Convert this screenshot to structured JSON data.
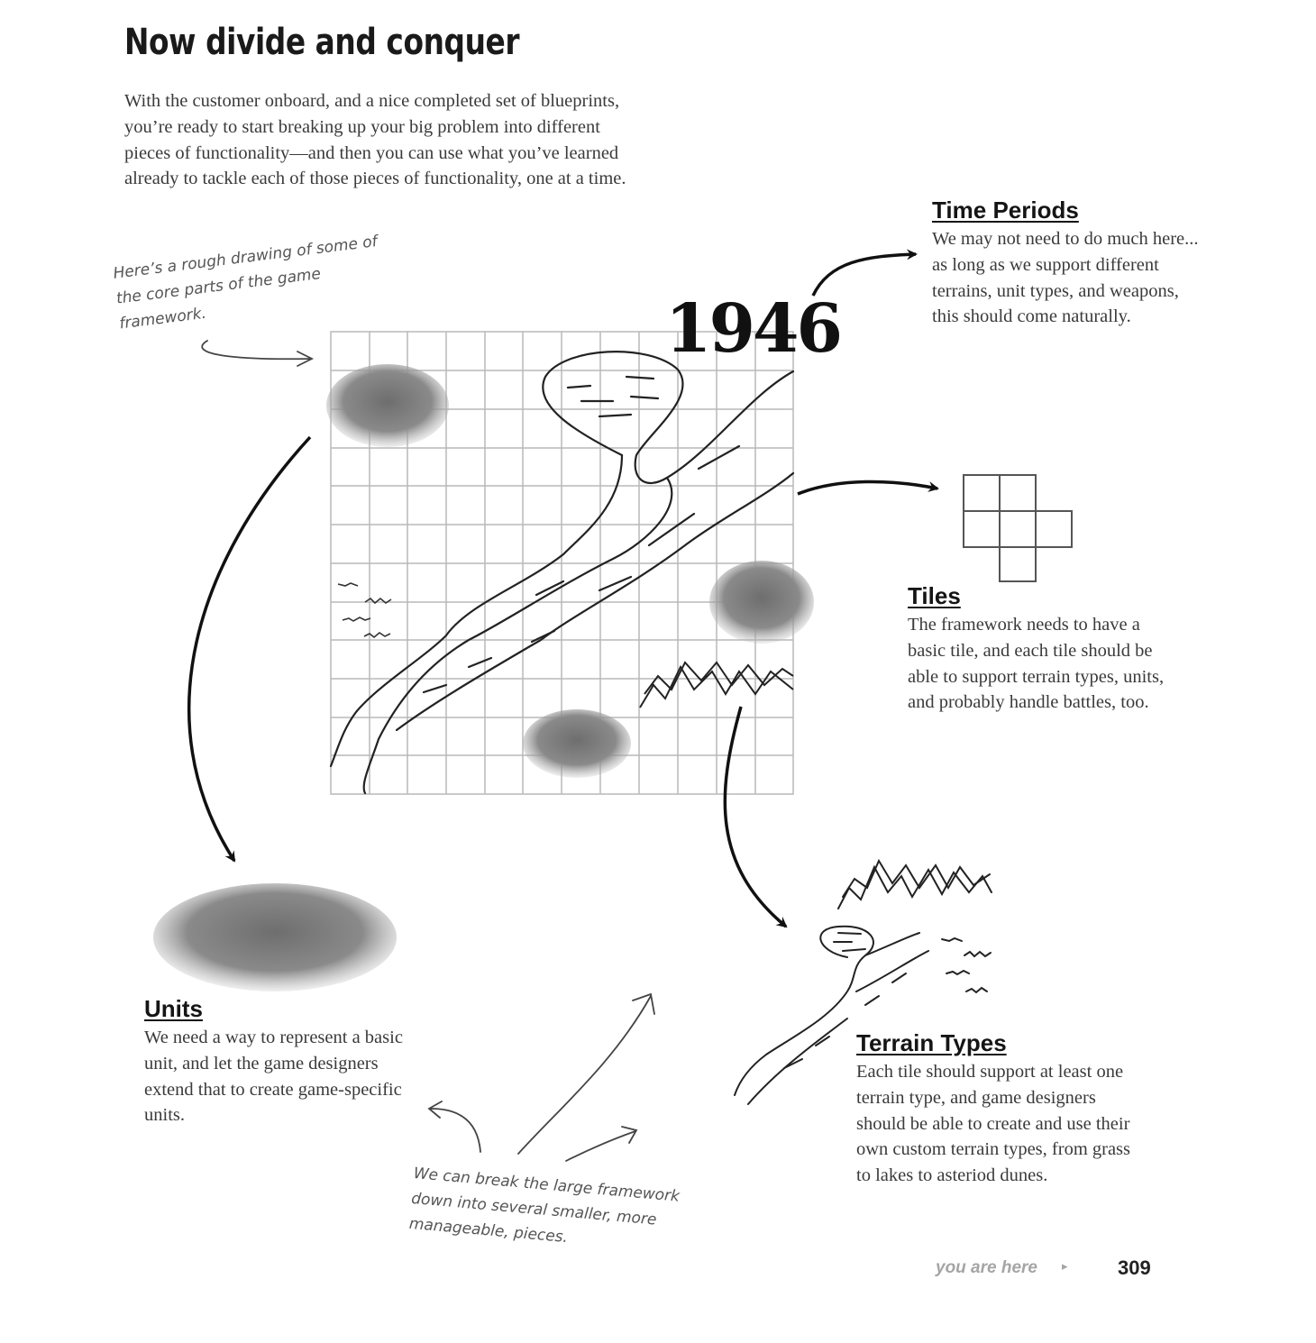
{
  "page": {
    "title": "Now divide and conquer",
    "intro": "With the customer onboard, and a nice completed set of blueprints,  you’re ready to start breaking up your big problem into different pieces of functionality—and then you can use what you’ve learned already to tackle each of those pieces of functionality, one at a time.",
    "annotation_top": "Here’s a rough drawing of some of the core parts of the game framework.",
    "annotation_bottom": "We can break the large framework down into several smaller, more manageable, pieces.",
    "map_year": "1946"
  },
  "sections": {
    "time_periods": {
      "heading": "Time Periods",
      "body": "We may not need to do much here... as long as we support different terrains, unit types, and weapons, this should come naturally."
    },
    "tiles": {
      "heading": "Tiles",
      "body": "The framework needs to have a basic tile, and each tile should be able to support terrain types, units, and probably handle battles, too."
    },
    "units": {
      "heading": "Units",
      "body": "We need a way to represent a basic unit, and let the game designers extend that to create game-specific units."
    },
    "terrain_types": {
      "heading": "Terrain Types",
      "body": "Each tile should support at least one terrain type, and game designers should be able to create and use their own custom terrain types, from grass to lakes to asteriod dunes."
    }
  },
  "footer": {
    "you_are_here": "you are here",
    "page_number": "309"
  },
  "colors": {
    "text": "#3a3a3a",
    "grid": "#b5b5b5",
    "sketch": "#222222",
    "footer_gray": "#a5a5a5"
  }
}
